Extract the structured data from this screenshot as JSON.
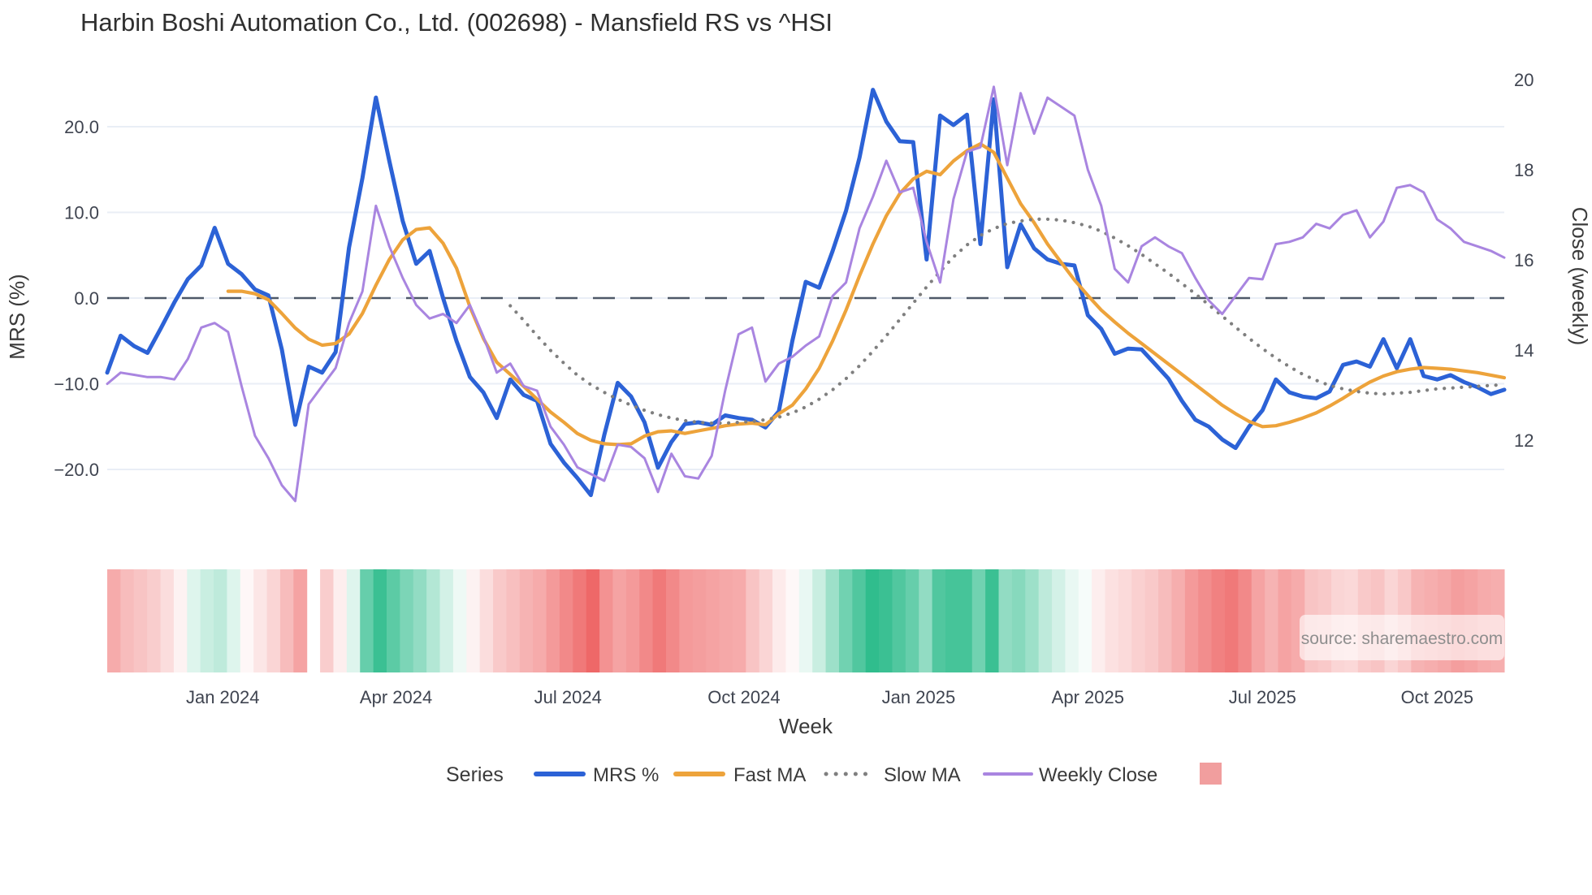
{
  "title": "Harbin Boshi Automation Co., Ltd. (002698) - Mansfield RS vs ^HSI",
  "source": "source: sharemaestro.com",
  "axes": {
    "left": {
      "label": "MRS (%)",
      "tick_values": [
        20,
        10,
        0,
        -10,
        -20
      ],
      "tick_labels": [
        "20.0",
        "10.0",
        "0.0",
        "−10.0",
        "−20.0"
      ]
    },
    "right": {
      "label": "Close (weekly)",
      "tick_values": [
        20,
        18,
        16,
        14,
        12
      ],
      "tick_labels": [
        "20",
        "18",
        "16",
        "14",
        "12"
      ]
    },
    "x": {
      "label": "Week",
      "tick_labels": [
        "Jan 2024",
        "Apr 2024",
        "Jul 2024",
        "Oct 2024",
        "Jan 2025",
        "Apr 2025",
        "Jul 2025",
        "Oct 2025"
      ],
      "tick_weeks": [
        8.6,
        21.5,
        34.3,
        47.4,
        60.4,
        73.0,
        86.0,
        99.0
      ]
    }
  },
  "legend": {
    "title": "Series",
    "items": [
      {
        "label": "MRS %",
        "type": "line",
        "color": "#2c62d6"
      },
      {
        "label": "Fast MA",
        "type": "line",
        "color": "#eda33b"
      },
      {
        "label": "Slow MA",
        "type": "dotted",
        "color": "#7f7f7f"
      },
      {
        "label": "Weekly Close",
        "type": "line",
        "color": "#a985e0"
      },
      {
        "label": "",
        "type": "square",
        "color": "#f19e9e"
      }
    ]
  },
  "colors": {
    "mrs": "#2c62d6",
    "fast_ma": "#eda33b",
    "slow_ma": "#7f7f7f",
    "weekly_close": "#a985e0",
    "zero_line": "#4e5868",
    "gridline": "#e9eef6",
    "heat_green": "#25b987",
    "heat_red": "#ec5757",
    "source_box": "rgba(255,255,255,0.62)"
  },
  "chart_data": {
    "type": "line",
    "x_unit": "week",
    "n_weeks": 105,
    "title": "Harbin Boshi Automation Co., Ltd. (002698) - Mansfield RS vs ^HSI",
    "xlabel": "Week",
    "ylabel_left": "MRS (%)",
    "ylabel_right": "Close (weekly)",
    "ylim_left": [
      -25,
      28
    ],
    "ylim_right": [
      10.2,
      20.6
    ],
    "grid": "horizontal-left-axis-only",
    "zero_reference_line": {
      "axis": "left",
      "value": 0,
      "style": "dashed"
    },
    "legend_position": "bottom",
    "series": [
      {
        "name": "MRS %",
        "axis": "left",
        "style": "solid",
        "color": "#2c62d6",
        "values": [
          -8.7,
          -4.4,
          -5.6,
          -6.4,
          -3.5,
          -0.5,
          2.2,
          3.8,
          8.2,
          4.0,
          2.8,
          1.0,
          0.3,
          -6.0,
          -14.8,
          -8.0,
          -8.7,
          -6.3,
          5.9,
          14.0,
          23.4,
          16.0,
          9.0,
          4.0,
          5.5,
          0.0,
          -5.0,
          -9.2,
          -11.0,
          -14.0,
          -9.5,
          -11.3,
          -12.0,
          -17.0,
          -19.2,
          -21.0,
          -23.0,
          -16.0,
          -9.9,
          -11.5,
          -14.5,
          -19.8,
          -16.8,
          -14.7,
          -14.5,
          -14.8,
          -13.7,
          -14.0,
          -14.2,
          -15.1,
          -13.2,
          -5.0,
          1.9,
          1.2,
          5.5,
          10.2,
          16.4,
          24.3,
          20.6,
          18.3,
          18.2,
          4.5,
          21.3,
          20.2,
          21.4,
          6.3,
          23.2,
          3.6,
          8.6,
          5.8,
          4.5,
          4.0,
          3.8,
          -2.0,
          -3.6,
          -6.5,
          -5.9,
          -6.0,
          -7.7,
          -9.4,
          -12.0,
          -14.2,
          -15.0,
          -16.5,
          -17.5,
          -15.0,
          -13.1,
          -9.5,
          -11.0,
          -11.5,
          -11.7,
          -10.9,
          -7.8,
          -7.4,
          -8.0,
          -4.8,
          -8.2,
          -4.8,
          -9.1,
          -9.5,
          -9.0,
          -9.8,
          -10.4,
          -11.2,
          -10.7
        ]
      },
      {
        "name": "Fast MA",
        "axis": "left",
        "style": "solid",
        "color": "#eda33b",
        "values": [
          null,
          null,
          null,
          null,
          null,
          null,
          null,
          null,
          null,
          0.8,
          0.8,
          0.5,
          -0.2,
          -1.8,
          -3.5,
          -4.8,
          -5.5,
          -5.3,
          -4.2,
          -1.8,
          1.5,
          4.5,
          6.8,
          8.0,
          8.2,
          6.4,
          3.5,
          -1.0,
          -4.7,
          -7.5,
          -8.9,
          -10.3,
          -11.8,
          -13.3,
          -14.5,
          -15.8,
          -16.6,
          -17.0,
          -17.1,
          -17.0,
          -16.1,
          -15.6,
          -15.5,
          -15.8,
          -15.5,
          -15.2,
          -14.9,
          -14.7,
          -14.6,
          -14.8,
          -13.5,
          -12.5,
          -10.6,
          -8.2,
          -5.0,
          -1.4,
          2.6,
          6.3,
          9.6,
          12.2,
          13.9,
          14.8,
          14.4,
          16.0,
          17.2,
          18.0,
          17.0,
          14.0,
          11.0,
          8.8,
          6.3,
          4.2,
          2.1,
          0.3,
          -1.4,
          -2.8,
          -4.1,
          -5.3,
          -6.5,
          -7.7,
          -8.9,
          -10.1,
          -11.3,
          -12.5,
          -13.5,
          -14.4,
          -15.0,
          -14.9,
          -14.5,
          -14.0,
          -13.4,
          -12.6,
          -11.7,
          -10.7,
          -9.8,
          -9.1,
          -8.6,
          -8.3,
          -8.1,
          -8.2,
          -8.3,
          -8.5,
          -8.7,
          -9.0,
          -9.3
        ]
      },
      {
        "name": "Slow MA",
        "axis": "left",
        "style": "dotted",
        "color": "#7f7f7f",
        "values": [
          null,
          null,
          null,
          null,
          null,
          null,
          null,
          null,
          null,
          null,
          null,
          null,
          null,
          null,
          null,
          null,
          null,
          null,
          null,
          null,
          null,
          null,
          null,
          null,
          null,
          null,
          null,
          null,
          null,
          null,
          -0.9,
          -2.6,
          -4.4,
          -6.1,
          -7.6,
          -9.0,
          -10.1,
          -11.0,
          -11.8,
          -12.5,
          -13.1,
          -13.6,
          -14.0,
          -14.3,
          -14.5,
          -14.6,
          -14.6,
          -14.5,
          -14.4,
          -14.2,
          -13.9,
          -13.4,
          -12.7,
          -11.8,
          -10.7,
          -9.4,
          -7.9,
          -6.2,
          -4.4,
          -2.5,
          -0.6,
          1.3,
          3.1,
          4.8,
          6.2,
          7.3,
          8.1,
          8.7,
          9.0,
          9.2,
          9.2,
          9.1,
          8.8,
          8.4,
          7.8,
          7.0,
          6.1,
          5.1,
          4.0,
          2.9,
          1.7,
          0.5,
          -0.8,
          -2.1,
          -3.4,
          -4.7,
          -5.9,
          -7.0,
          -8.0,
          -8.9,
          -9.6,
          -10.2,
          -10.6,
          -10.9,
          -11.1,
          -11.2,
          -11.1,
          -11.0,
          -10.8,
          -10.6,
          -10.5,
          -10.4,
          -10.3,
          -10.2,
          -10.1
        ]
      },
      {
        "name": "Weekly Close",
        "axis": "right",
        "style": "solid",
        "color": "#a985e0",
        "values": [
          13.25,
          13.5,
          13.45,
          13.4,
          13.4,
          13.35,
          13.8,
          14.5,
          14.6,
          14.4,
          13.2,
          12.1,
          11.6,
          11.0,
          10.65,
          12.8,
          13.2,
          13.6,
          14.6,
          15.3,
          17.2,
          16.3,
          15.6,
          15.0,
          14.7,
          14.8,
          14.6,
          15.0,
          14.3,
          13.5,
          13.7,
          13.2,
          13.1,
          12.3,
          11.9,
          11.4,
          11.25,
          11.1,
          11.9,
          11.85,
          11.6,
          10.85,
          11.7,
          11.2,
          11.15,
          11.65,
          13.1,
          14.35,
          14.5,
          13.3,
          13.7,
          13.85,
          14.1,
          14.3,
          15.2,
          15.5,
          16.7,
          17.4,
          18.2,
          17.5,
          17.6,
          16.4,
          15.5,
          17.35,
          18.4,
          18.5,
          19.84,
          18.1,
          19.7,
          18.8,
          19.6,
          19.4,
          19.2,
          18.0,
          17.2,
          15.8,
          15.5,
          16.3,
          16.5,
          16.3,
          16.15,
          15.6,
          15.1,
          14.8,
          15.2,
          15.6,
          15.57,
          16.35,
          16.4,
          16.5,
          16.8,
          16.7,
          17.0,
          17.1,
          16.5,
          16.85,
          17.6,
          17.66,
          17.5,
          16.9,
          16.7,
          16.4,
          16.3,
          16.2,
          16.05
        ]
      }
    ],
    "heatmap_strip": {
      "description": "red-green weekly intensity band under plot, white = missing week",
      "scale_range": [
        -10,
        10
      ],
      "values": [
        -5,
        -4,
        -3.5,
        -3,
        -2,
        -0.8,
        1.5,
        2.5,
        3,
        1.5,
        -0.5,
        -1.5,
        -2.5,
        -4,
        -5.5,
        null,
        -3,
        -1,
        1.5,
        7,
        9,
        7.5,
        6,
        5,
        3.5,
        2,
        0.8,
        -0.8,
        -2,
        -3.2,
        -3.8,
        -4.5,
        -5,
        -6,
        -7,
        -8,
        -9,
        -6.5,
        -5.5,
        -6,
        -7,
        -8,
        -7,
        -6,
        -5.8,
        -5.5,
        -5.2,
        -5,
        -3.5,
        -2.5,
        -1.2,
        -0.4,
        1,
        2.5,
        4.5,
        6.5,
        8,
        9.5,
        9,
        8,
        7,
        5,
        8,
        8.5,
        8.5,
        6.5,
        9,
        5,
        5.5,
        4.5,
        3,
        2,
        1,
        0.4,
        -1,
        -1.8,
        -2.2,
        -2.8,
        -3.2,
        -4,
        -4.8,
        -6,
        -6.8,
        -7.5,
        -8,
        -7,
        -5.5,
        -4.5,
        -5.5,
        -5,
        -3.5,
        -3.2,
        -2.5,
        -2.3,
        -3.2,
        -3.5,
        -2.5,
        -3.3,
        -4.5,
        -4.8,
        -5.2,
        -5.8,
        -5.5,
        -5,
        -4.8
      ]
    }
  }
}
